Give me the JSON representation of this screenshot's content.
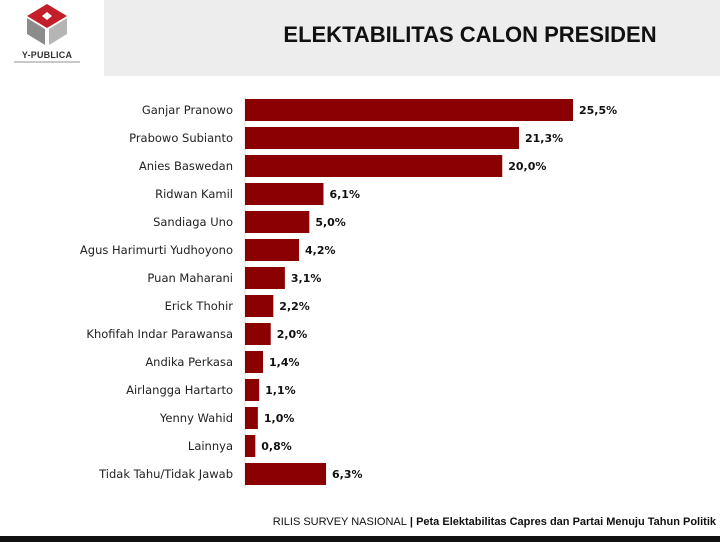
{
  "header": {
    "logo_text": "Y-PUBLICA",
    "title": "ELEKTABILITAS CALON PRESIDEN"
  },
  "footer": {
    "prefix": "RILIS SURVEY NASIONAL",
    "separator": " | ",
    "subtitle": "Peta Elektabilitas Capres dan Partai Menuju Tahun Politik"
  },
  "colors": {
    "bar": "#8b0000",
    "logo_red": "#c41e2a"
  },
  "chart_data": {
    "type": "bar",
    "orientation": "horizontal",
    "title": "ELEKTABILITAS CALON PRESIDEN",
    "xlabel": "",
    "ylabel": "",
    "xlim": [
      0,
      25.5
    ],
    "categories": [
      "Ganjar Pranowo",
      "Prabowo Subianto",
      "Anies Baswedan",
      "Ridwan Kamil",
      "Sandiaga Uno",
      "Agus Harimurti Yudhoyono",
      "Puan Maharani",
      "Erick Thohir",
      "Khofifah Indar Parawansa",
      "Andika Perkasa",
      "Airlangga Hartarto",
      "Yenny Wahid",
      "Lainnya",
      "Tidak Tahu/Tidak Jawab"
    ],
    "values": [
      25.5,
      21.3,
      20.0,
      6.1,
      5.0,
      4.2,
      3.1,
      2.2,
      2.0,
      1.4,
      1.1,
      1.0,
      0.8,
      6.3
    ],
    "labels": [
      "25,5%",
      "21,3%",
      "20,0%",
      "6,1%",
      "5,0%",
      "4,2%",
      "3,1%",
      "2,2%",
      "2,0%",
      "1,4%",
      "1,1%",
      "1,0%",
      "0,8%",
      "6,3%"
    ]
  }
}
